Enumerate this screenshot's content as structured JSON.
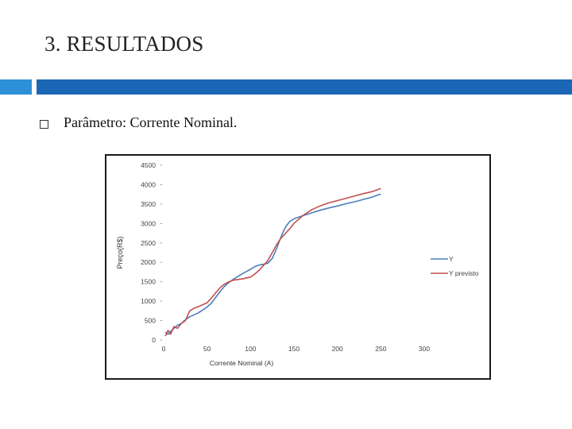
{
  "slide": {
    "title": "3. RESULTADOS",
    "bullet": "Parâmetro: Corrente Nominal.",
    "accent_color": "#1b67b5",
    "accent_light": "#2d8fd6"
  },
  "chart_data": {
    "type": "line",
    "title": "",
    "xlabel": "Corrente Nominal (A)",
    "ylabel": "Preço(R$)",
    "xlim": [
      0,
      300
    ],
    "ylim": [
      0,
      4500
    ],
    "x_ticks": [
      0,
      50,
      100,
      150,
      200,
      250,
      300
    ],
    "y_ticks": [
      0,
      500,
      1000,
      1500,
      2000,
      2500,
      3000,
      3500,
      4000,
      4500
    ],
    "x_tick_labels": [
      "0",
      "50",
      "100",
      "150",
      "200",
      "250",
      "300"
    ],
    "y_tick_labels": [
      "0",
      "500",
      "1000",
      "1500",
      "2000",
      "2500",
      "3000",
      "3500",
      "4000",
      "4500"
    ],
    "grid": false,
    "legend_position": "right",
    "series": [
      {
        "name": "Y",
        "color": "#4a7ebb",
        "x": [
          2,
          5,
          8,
          12,
          16,
          20,
          25,
          30,
          40,
          50,
          55,
          60,
          65,
          70,
          75,
          80,
          90,
          100,
          105,
          110,
          115,
          120,
          125,
          130,
          135,
          140,
          145,
          150,
          155,
          160,
          170,
          180,
          190,
          200,
          210,
          220,
          230,
          240,
          245,
          250
        ],
        "y": [
          200,
          150,
          220,
          300,
          380,
          420,
          520,
          600,
          700,
          850,
          950,
          1100,
          1250,
          1380,
          1480,
          1560,
          1700,
          1820,
          1890,
          1930,
          1950,
          1980,
          2100,
          2350,
          2650,
          2900,
          3050,
          3120,
          3160,
          3200,
          3270,
          3340,
          3400,
          3450,
          3510,
          3560,
          3620,
          3680,
          3720,
          3760
        ]
      },
      {
        "name": "Y previsto",
        "color": "#c0504d",
        "x": [
          2,
          5,
          8,
          12,
          16,
          20,
          25,
          28,
          30,
          35,
          40,
          50,
          55,
          60,
          65,
          70,
          75,
          80,
          90,
          100,
          105,
          110,
          115,
          120,
          125,
          130,
          135,
          140,
          145,
          150,
          160,
          170,
          180,
          190,
          200,
          210,
          220,
          230,
          240,
          250
        ],
        "y": [
          100,
          250,
          150,
          350,
          300,
          420,
          500,
          650,
          750,
          820,
          860,
          960,
          1080,
          1220,
          1350,
          1440,
          1500,
          1540,
          1570,
          1620,
          1700,
          1800,
          1920,
          2050,
          2250,
          2450,
          2620,
          2740,
          2860,
          3000,
          3200,
          3350,
          3450,
          3530,
          3590,
          3650,
          3710,
          3770,
          3820,
          3900
        ]
      }
    ]
  }
}
